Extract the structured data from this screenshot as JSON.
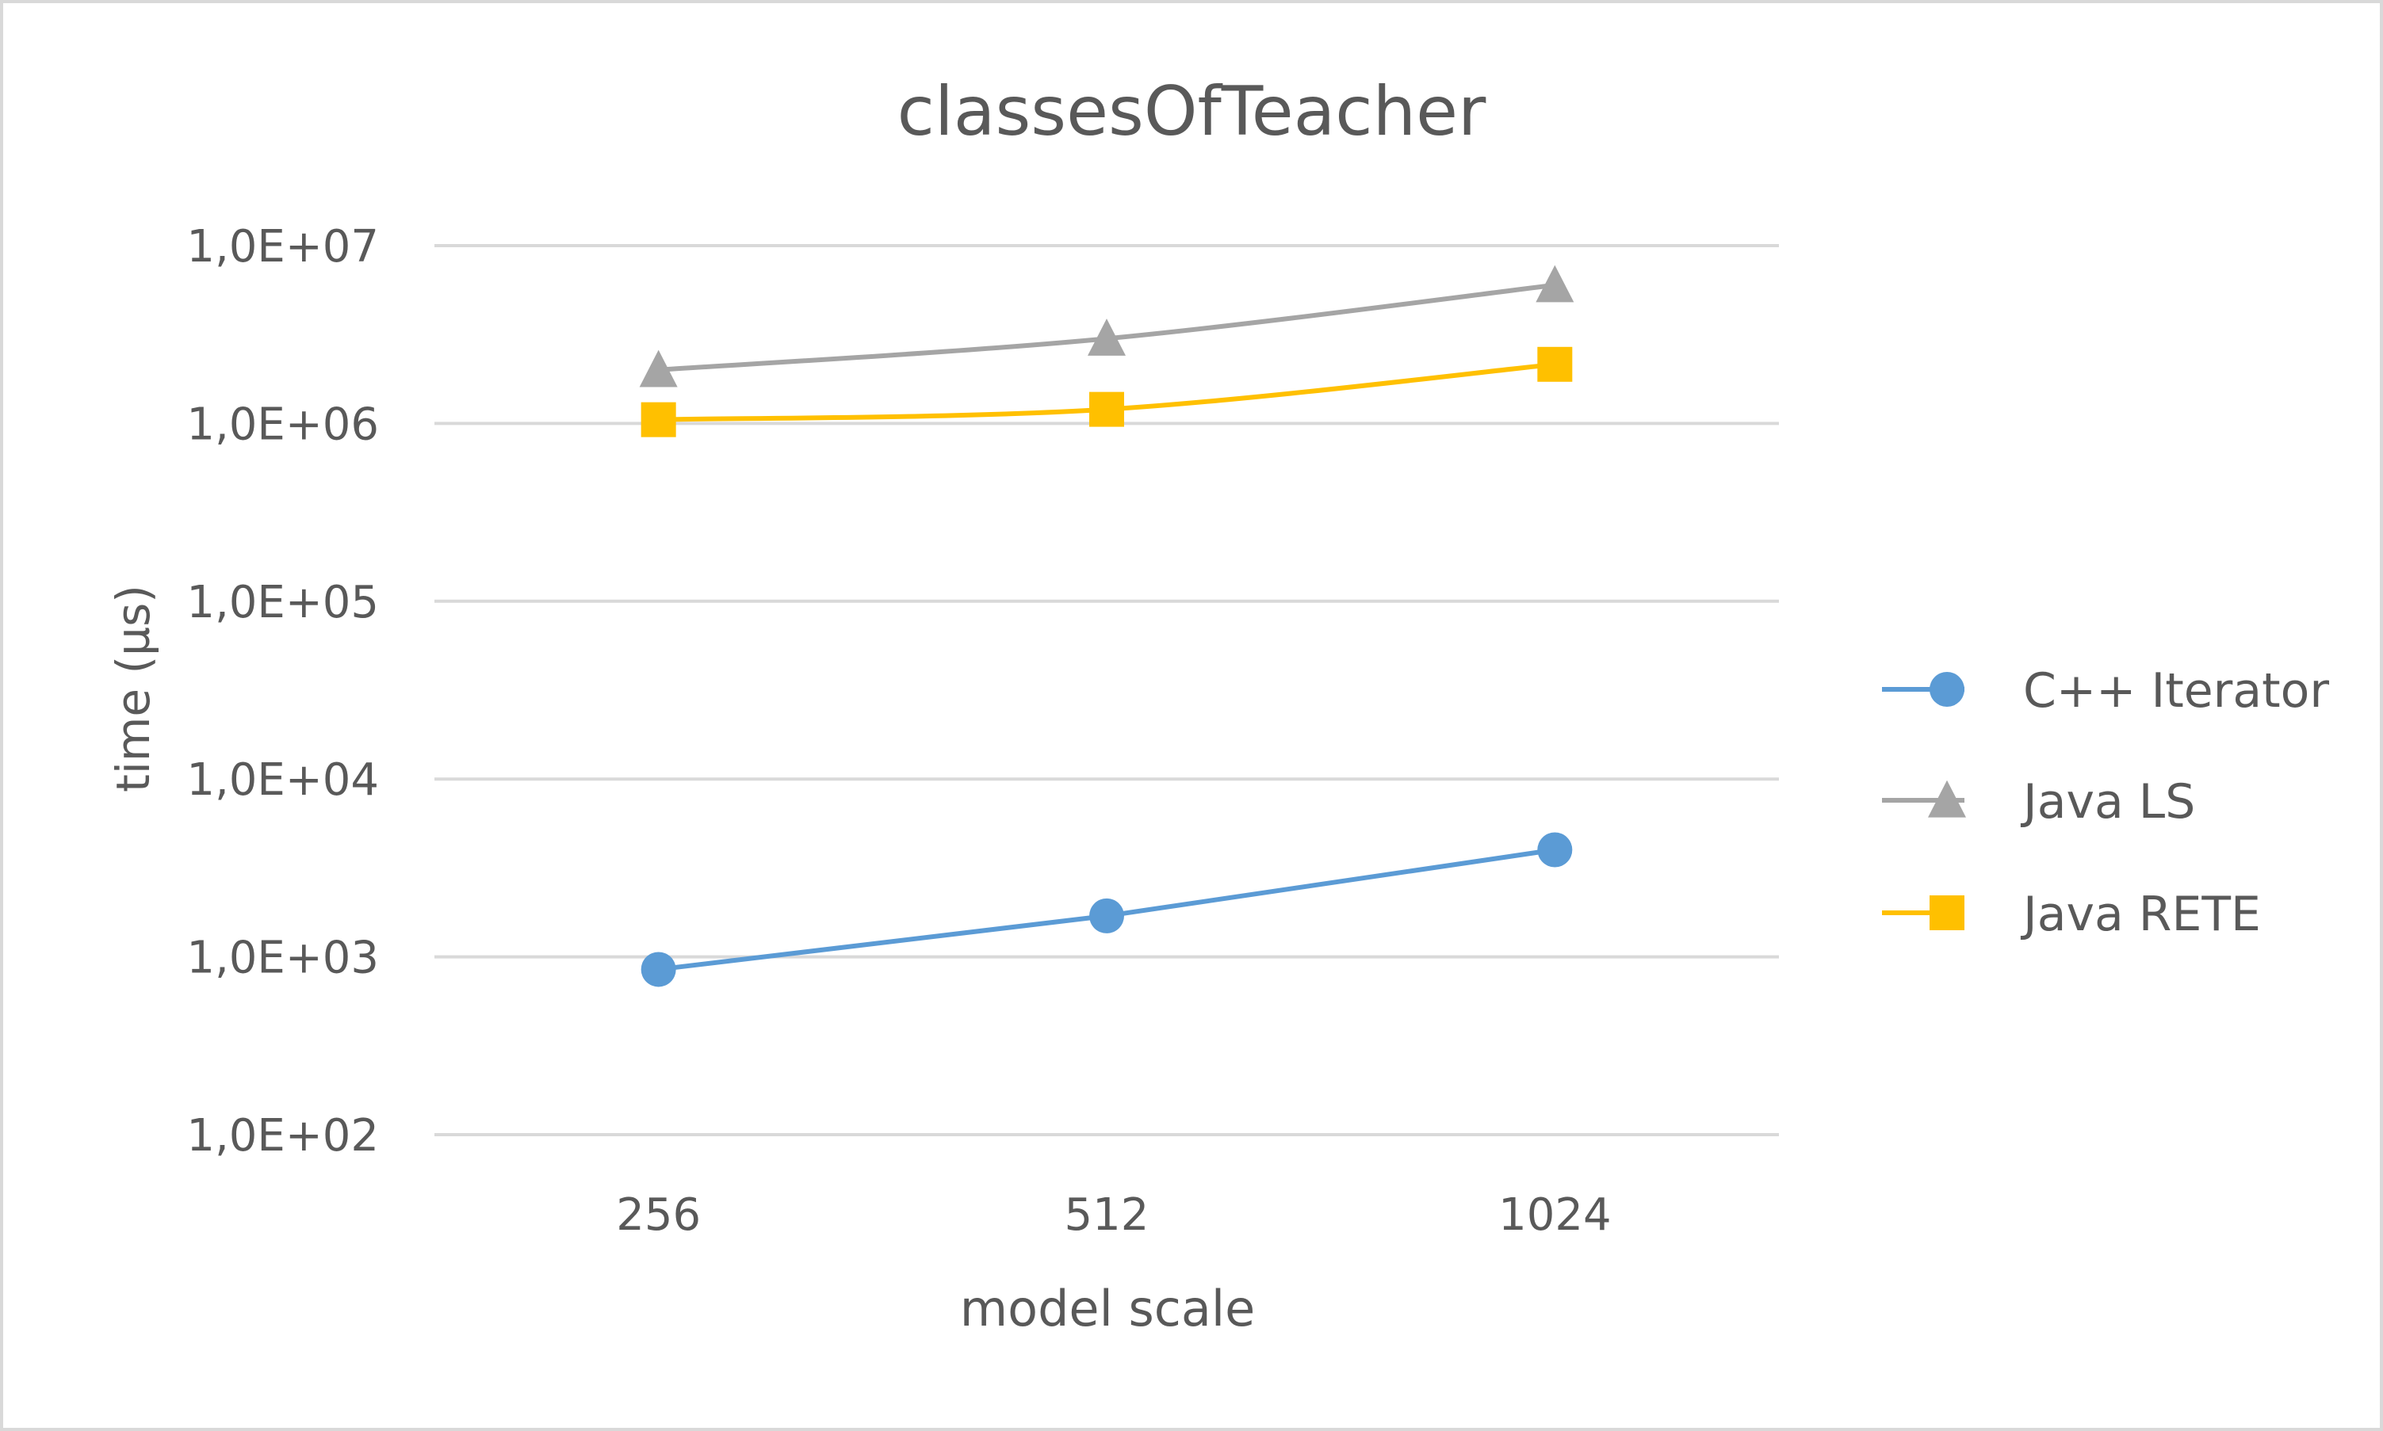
{
  "chart_data": {
    "type": "line",
    "title": "classesOfTeacher",
    "xlabel": "model scale",
    "ylabel": "time (µs)",
    "categories": [
      "256",
      "512",
      "1024"
    ],
    "y_scale": "log",
    "ylim": [
      100,
      10000000
    ],
    "y_ticks": [
      {
        "value": 100,
        "label": "1,0E+02"
      },
      {
        "value": 1000,
        "label": "1,0E+03"
      },
      {
        "value": 10000,
        "label": "1,0E+04"
      },
      {
        "value": 100000,
        "label": "1,0E+05"
      },
      {
        "value": 1000000,
        "label": "1,0E+06"
      },
      {
        "value": 10000000,
        "label": "1,0E+07"
      }
    ],
    "grid": true,
    "legend_position": "right",
    "series": [
      {
        "name": "C++ Iterator",
        "marker": "circle",
        "color": "#5b9bd5",
        "smooth": false,
        "values": [
          850,
          1700,
          4000
        ]
      },
      {
        "name": "Java LS",
        "marker": "triangle",
        "color": "#a5a5a5",
        "smooth": true,
        "values": [
          2000000,
          3000000,
          6000000
        ]
      },
      {
        "name": "Java RETE",
        "marker": "square",
        "color": "#ffc000",
        "smooth": true,
        "values": [
          1050000,
          1200000,
          2150000
        ]
      }
    ]
  }
}
